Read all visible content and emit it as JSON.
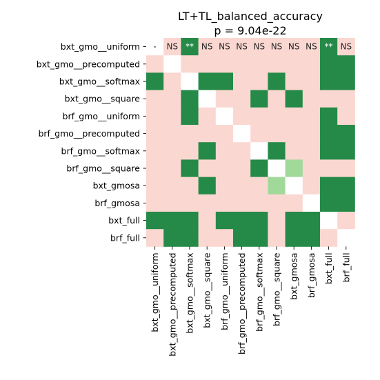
{
  "chart_data": {
    "type": "heatmap",
    "title": "LT+TL_balanced_accuracy",
    "subtitle": "p = 9.04e-22",
    "row_labels": [
      "bxt_gmo__uniform",
      "bxt_gmo__precomputed",
      "bxt_gmo__softmax",
      "bxt_gmo__square",
      "brf_gmo__uniform",
      "brf_gmo__precomputed",
      "brf_gmo__softmax",
      "brf_gmo__square",
      "bxt_gmosa",
      "brf_gmosa",
      "bxt_full",
      "brf_full"
    ],
    "col_labels": [
      "bxt_gmo__uniform",
      "bxt_gmo__precomputed",
      "bxt_gmo__softmax",
      "bxt_gmo__square",
      "brf_gmo__uniform",
      "brf_gmo__precomputed",
      "brf_gmo__softmax",
      "brf_gmo__square",
      "bxt_gmosa",
      "brf_gmosa",
      "bxt_full",
      "brf_full"
    ],
    "legend": {
      "W": "#ffffff",
      "P": "#fbd7d1",
      "G": "#258a48",
      "L": "#a1d99b"
    },
    "cells": [
      [
        "W",
        "P",
        "G",
        "P",
        "P",
        "P",
        "P",
        "P",
        "P",
        "P",
        "G",
        "P"
      ],
      [
        "P",
        "W",
        "P",
        "P",
        "P",
        "P",
        "P",
        "P",
        "P",
        "P",
        "G",
        "G"
      ],
      [
        "G",
        "P",
        "W",
        "G",
        "G",
        "P",
        "P",
        "G",
        "P",
        "P",
        "G",
        "G"
      ],
      [
        "P",
        "P",
        "G",
        "W",
        "P",
        "P",
        "G",
        "P",
        "G",
        "P",
        "P",
        "P"
      ],
      [
        "P",
        "P",
        "G",
        "P",
        "W",
        "P",
        "P",
        "P",
        "P",
        "P",
        "G",
        "P"
      ],
      [
        "P",
        "P",
        "P",
        "P",
        "P",
        "W",
        "P",
        "P",
        "P",
        "P",
        "G",
        "G"
      ],
      [
        "P",
        "P",
        "P",
        "G",
        "P",
        "P",
        "W",
        "G",
        "P",
        "P",
        "G",
        "G"
      ],
      [
        "P",
        "P",
        "G",
        "P",
        "P",
        "P",
        "G",
        "W",
        "L",
        "P",
        "P",
        "P"
      ],
      [
        "P",
        "P",
        "P",
        "G",
        "P",
        "P",
        "P",
        "L",
        "W",
        "P",
        "G",
        "G"
      ],
      [
        "P",
        "P",
        "P",
        "P",
        "P",
        "P",
        "P",
        "P",
        "P",
        "W",
        "G",
        "G"
      ],
      [
        "G",
        "G",
        "G",
        "P",
        "G",
        "G",
        "G",
        "P",
        "G",
        "G",
        "W",
        "P"
      ],
      [
        "P",
        "G",
        "G",
        "P",
        "P",
        "G",
        "G",
        "P",
        "G",
        "G",
        "P",
        "W"
      ]
    ],
    "annotations": [
      {
        "row": 0,
        "col": 0,
        "text": "-"
      },
      {
        "row": 0,
        "col": 1,
        "text": "NS"
      },
      {
        "row": 0,
        "col": 2,
        "text": "**"
      },
      {
        "row": 0,
        "col": 3,
        "text": "NS"
      },
      {
        "row": 0,
        "col": 4,
        "text": "NS"
      },
      {
        "row": 0,
        "col": 5,
        "text": "NS"
      },
      {
        "row": 0,
        "col": 6,
        "text": "NS"
      },
      {
        "row": 0,
        "col": 7,
        "text": "NS"
      },
      {
        "row": 0,
        "col": 8,
        "text": "NS"
      },
      {
        "row": 0,
        "col": 9,
        "text": "NS"
      },
      {
        "row": 0,
        "col": 10,
        "text": "**"
      },
      {
        "row": 0,
        "col": 11,
        "text": "NS"
      }
    ]
  }
}
